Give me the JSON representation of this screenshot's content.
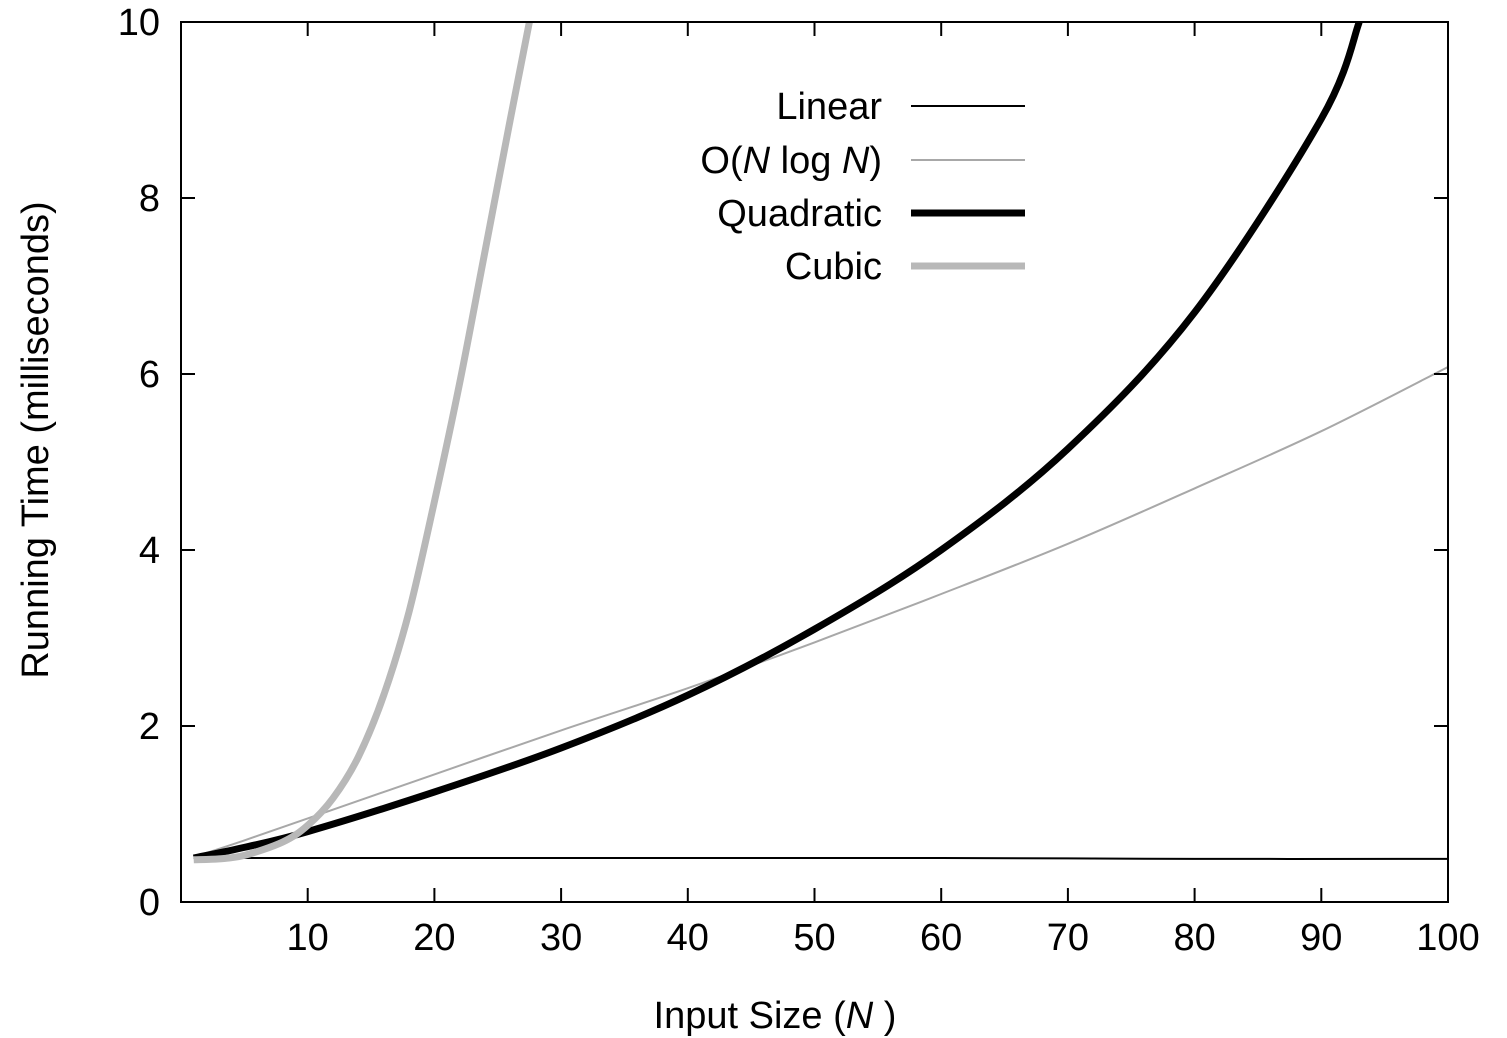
{
  "chart_data": {
    "type": "line",
    "title": "",
    "xlabel": {
      "text": "Input Size (",
      "var": "N",
      "suffix": " )"
    },
    "ylabel": "Running Time (milliseconds)",
    "xlim": [
      0,
      100
    ],
    "ylim": [
      0,
      10
    ],
    "x_ticks": [
      10,
      20,
      30,
      40,
      50,
      60,
      70,
      80,
      90,
      100
    ],
    "y_ticks": [
      0,
      2,
      4,
      6,
      8,
      10
    ],
    "grid": false,
    "legend_position": "top-center",
    "series": [
      {
        "name": "Linear",
        "legend_parts": [
          {
            "t": "Linear",
            "i": false
          }
        ],
        "color": "#000000",
        "width": 2,
        "x": [
          1,
          20,
          40,
          60,
          80,
          100
        ],
        "y": [
          0.5,
          0.5,
          0.5,
          0.5,
          0.49,
          0.49
        ]
      },
      {
        "name": "O(N log N)",
        "legend_parts": [
          {
            "t": "O(",
            "i": false
          },
          {
            "t": "N",
            "i": true
          },
          {
            "t": " log ",
            "i": false
          },
          {
            "t": "N",
            "i": true
          },
          {
            "t": ")",
            "i": false
          }
        ],
        "color": "#a8a8a8",
        "width": 2,
        "x": [
          1,
          5,
          10,
          20,
          30,
          40,
          50,
          60,
          70,
          80,
          90,
          100
        ],
        "y": [
          0.51,
          0.7,
          0.95,
          1.45,
          1.95,
          2.43,
          2.95,
          3.5,
          4.07,
          4.7,
          5.35,
          6.08
        ]
      },
      {
        "name": "Quadratic",
        "legend_parts": [
          {
            "t": "Quadratic",
            "i": false
          }
        ],
        "color": "#000000",
        "width": 7,
        "x": [
          1,
          5,
          10,
          20,
          30,
          40,
          50,
          60,
          70,
          80,
          90,
          93
        ],
        "y": [
          0.5,
          0.62,
          0.8,
          1.25,
          1.75,
          2.35,
          3.1,
          4.0,
          5.15,
          6.7,
          8.9,
          10.0
        ]
      },
      {
        "name": "Cubic",
        "legend_parts": [
          {
            "t": "Cubic",
            "i": false
          }
        ],
        "color": "#b8b8b8",
        "width": 7,
        "x": [
          1,
          3,
          5,
          8,
          10,
          12,
          14,
          16,
          18,
          20,
          22,
          24,
          26,
          27.5
        ],
        "y": [
          0.48,
          0.49,
          0.53,
          0.68,
          0.87,
          1.18,
          1.65,
          2.35,
          3.3,
          4.55,
          5.9,
          7.4,
          8.9,
          10.0
        ]
      }
    ]
  }
}
